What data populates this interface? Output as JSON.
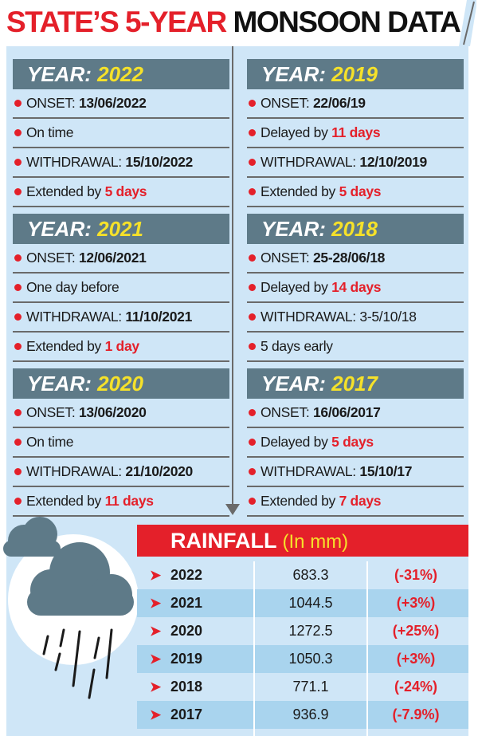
{
  "title": {
    "part1": "STATE’S 5-YEAR",
    "part2": "MONSOON DATA"
  },
  "colors": {
    "accent_red": "#e4202a",
    "header_grey": "#5e7a88",
    "year_yellow": "#f5e12a",
    "panel_blue": "#cfe6f7",
    "row_blue": "#a9d4ee"
  },
  "years": [
    {
      "label": "YEAR:",
      "year": "2022",
      "onset_label": "ONSET:",
      "onset": "13/06/2022",
      "onset_note": "On time",
      "onset_note_hl": "",
      "withdrawal_label": "WITHDRAWAL:",
      "withdrawal": "15/10/2022",
      "withdrawal_note": "Extended by",
      "withdrawal_note_hl": "5 days"
    },
    {
      "label": "YEAR:",
      "year": "2019",
      "onset_label": "ONSET:",
      "onset": "22/06/19",
      "onset_note": "Delayed by",
      "onset_note_hl": "11 days",
      "withdrawal_label": "WITHDRAWAL:",
      "withdrawal": "12/10/2019",
      "withdrawal_note": "Extended by",
      "withdrawal_note_hl": "5 days"
    },
    {
      "label": "YEAR:",
      "year": "2021",
      "onset_label": "ONSET:",
      "onset": "12/06/2021",
      "onset_note": "One day before",
      "onset_note_hl": "",
      "withdrawal_label": "WITHDRAWAL:",
      "withdrawal": "11/10/2021",
      "withdrawal_note": "Extended by",
      "withdrawal_note_hl": "1 day"
    },
    {
      "label": "YEAR:",
      "year": "2018",
      "onset_label": "ONSET:",
      "onset": "25-28/06/18",
      "onset_note": "Delayed by",
      "onset_note_hl": "14 days",
      "withdrawal_label": "WITHDRAWAL:",
      "withdrawal": "3-5/10/18",
      "withdrawal_note": "5 days early",
      "withdrawal_note_hl": ""
    },
    {
      "label": "YEAR:",
      "year": "2020",
      "onset_label": "ONSET:",
      "onset": "13/06/2020",
      "onset_note": "On time",
      "onset_note_hl": "",
      "withdrawal_label": "WITHDRAWAL:",
      "withdrawal": "21/10/2020",
      "withdrawal_note": "Extended by",
      "withdrawal_note_hl": "11 days"
    },
    {
      "label": "YEAR:",
      "year": "2017",
      "onset_label": "ONSET:",
      "onset": "16/06/2017",
      "onset_note": "Delayed by",
      "onset_note_hl": "5 days",
      "withdrawal_label": "WITHDRAWAL:",
      "withdrawal": "15/10/17",
      "withdrawal_note": "Extended by",
      "withdrawal_note_hl": "7 days"
    }
  ],
  "rainfall": {
    "title": "RAINFALL",
    "unit": "(In mm)",
    "rows": [
      {
        "year": "2022",
        "value": "683.3",
        "change": "(-31%)"
      },
      {
        "year": "2021",
        "value": "1044.5",
        "change": "(+3%)"
      },
      {
        "year": "2020",
        "value": "1272.5",
        "change": "(+25%)"
      },
      {
        "year": "2019",
        "value": "1050.3",
        "change": "(+3%)"
      },
      {
        "year": "2018",
        "value": "771.1",
        "change": "(-24%)"
      },
      {
        "year": "2017",
        "value": "936.9",
        "change": "(-7.9%)"
      }
    ]
  },
  "icons": {
    "arrow": "➤",
    "cloud": "rain-cloud-icon"
  }
}
